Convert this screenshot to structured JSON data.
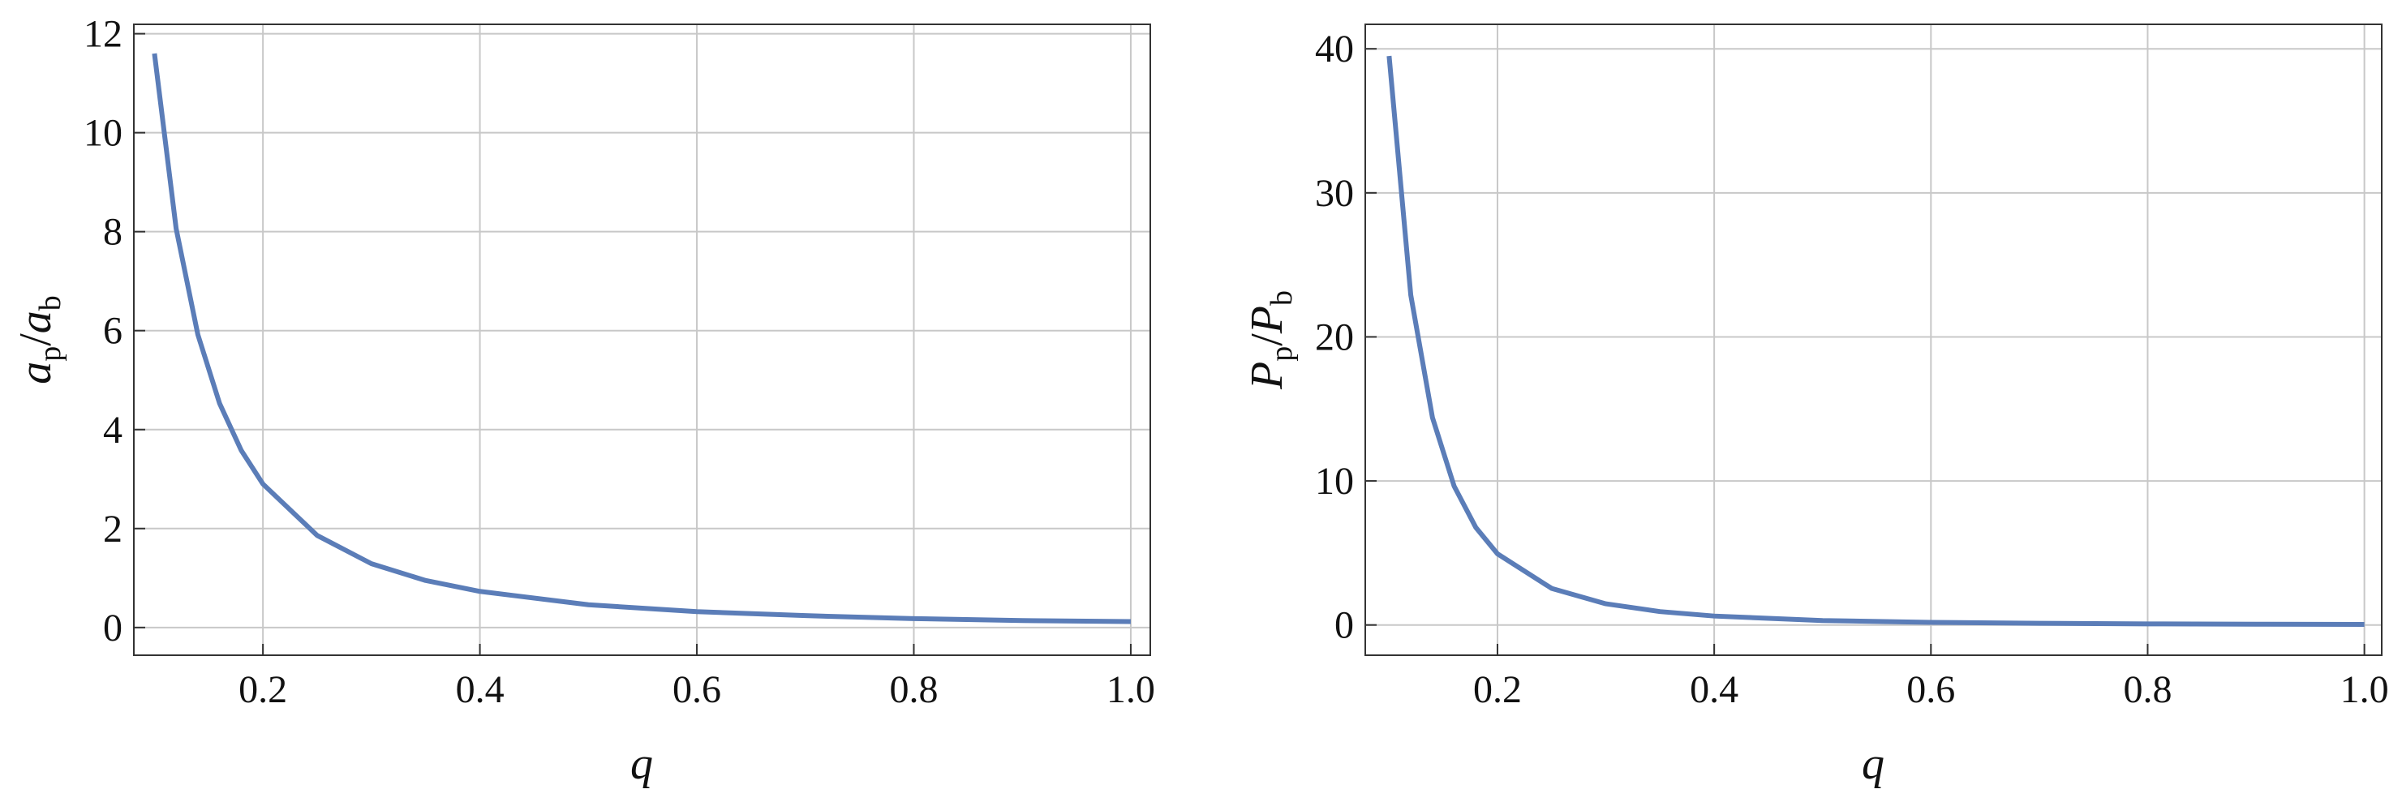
{
  "chart_data": [
    {
      "type": "line",
      "x": [
        0.1,
        0.12,
        0.14,
        0.16,
        0.18,
        0.2,
        0.25,
        0.3,
        0.35,
        0.4,
        0.5,
        0.6,
        0.7,
        0.8,
        0.9,
        1.0
      ],
      "series": [
        {
          "color": "#5b7db8",
          "values": [
            11.6,
            8.06,
            5.92,
            4.53,
            3.58,
            2.9,
            1.86,
            1.29,
            0.95,
            0.73,
            0.46,
            0.32,
            0.24,
            0.18,
            0.14,
            0.12
          ]
        }
      ],
      "xlabel": "q",
      "ylabel": [
        "a",
        "p",
        "/",
        "a",
        "b"
      ],
      "xlim": [
        0.081,
        1.018
      ],
      "ylim": [
        -0.56,
        12.19
      ],
      "xticks": [
        0.2,
        0.4,
        0.6,
        0.8,
        {
          "value": 1.0,
          "label": "1.0"
        }
      ],
      "yticks": [
        0,
        2,
        4,
        6,
        8,
        10,
        12
      ],
      "grid": true
    },
    {
      "type": "line",
      "x": [
        0.1,
        0.12,
        0.14,
        0.16,
        0.18,
        0.2,
        0.25,
        0.3,
        0.35,
        0.4,
        0.5,
        0.6,
        0.7,
        0.8,
        0.9,
        1.0
      ],
      "series": [
        {
          "color": "#5b7db8",
          "values": [
            39.5,
            22.9,
            14.4,
            9.64,
            6.77,
            4.94,
            2.54,
            1.47,
            0.93,
            0.62,
            0.31,
            0.18,
            0.12,
            0.076,
            0.052,
            0.042
          ]
        }
      ],
      "xlabel": "q",
      "ylabel": [
        "P",
        "p",
        "/",
        "P",
        "b"
      ],
      "xlim": [
        0.078,
        1.016
      ],
      "ylim": [
        -2.1,
        41.7
      ],
      "xticks": [
        0.2,
        0.4,
        0.6,
        0.8,
        {
          "value": 1.0,
          "label": "1.0"
        }
      ],
      "yticks": [
        0,
        10,
        20,
        30,
        40
      ],
      "grid": true
    }
  ]
}
